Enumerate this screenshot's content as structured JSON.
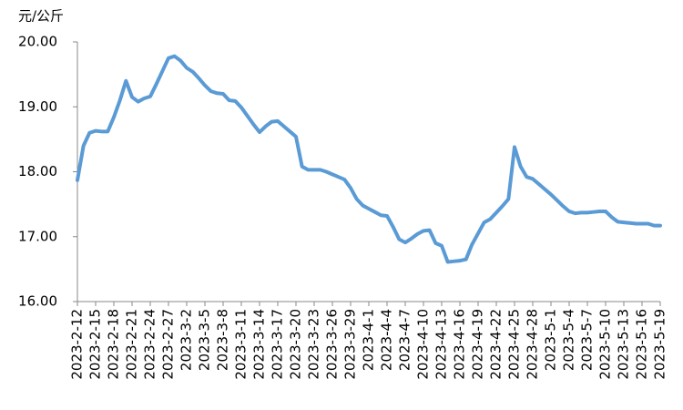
{
  "chart_data": {
    "type": "line",
    "y_label": "元/公斤",
    "categories": [
      "2023-2-12",
      null,
      null,
      "2023-2-15",
      null,
      null,
      "2023-2-18",
      null,
      null,
      "2023-2-21",
      null,
      null,
      "2023-2-24",
      null,
      null,
      "2023-2-27",
      null,
      null,
      "2023-3-2",
      null,
      null,
      "2023-3-5",
      null,
      null,
      "2023-3-8",
      null,
      null,
      "2023-3-11",
      null,
      null,
      "2023-3-14",
      null,
      null,
      "2023-3-17",
      null,
      null,
      "2023-3-20",
      null,
      null,
      "2023-3-23",
      null,
      null,
      "2023-3-26",
      null,
      null,
      "2023-3-29",
      null,
      null,
      "2023-4-1",
      null,
      null,
      "2023-4-4",
      null,
      null,
      "2023-4-7",
      null,
      null,
      "2023-4-10",
      null,
      null,
      "2023-4-13",
      null,
      null,
      "2023-4-16",
      null,
      null,
      "2023-4-19",
      null,
      null,
      "2023-4-22",
      null,
      null,
      "2023-4-25",
      null,
      null,
      "2023-4-28",
      null,
      null,
      "2023-5-1",
      null,
      null,
      "2023-5-4",
      null,
      null,
      "2023-5-7",
      null,
      null,
      "2023-5-10",
      null,
      null,
      "2023-5-13",
      null,
      null,
      "2023-5-16",
      null,
      null,
      "2023-5-19"
    ],
    "values": [
      17.87,
      18.4,
      18.6,
      18.63,
      18.62,
      18.62,
      18.84,
      19.1,
      19.4,
      19.15,
      19.08,
      19.13,
      19.16,
      19.35,
      19.55,
      19.75,
      19.78,
      19.71,
      19.6,
      19.54,
      19.44,
      19.33,
      19.24,
      19.21,
      19.2,
      19.1,
      19.09,
      18.99,
      18.86,
      18.73,
      18.61,
      18.7,
      18.77,
      18.78,
      18.7,
      18.62,
      18.54,
      18.08,
      18.03,
      18.03,
      18.03,
      18.0,
      17.96,
      17.92,
      17.88,
      17.75,
      17.58,
      17.48,
      17.43,
      17.38,
      17.33,
      17.32,
      17.15,
      16.96,
      16.91,
      16.97,
      17.04,
      17.09,
      17.1,
      16.9,
      16.86,
      16.61,
      16.62,
      16.63,
      16.65,
      16.88,
      17.05,
      17.22,
      17.27,
      17.37,
      17.47,
      17.58,
      18.38,
      18.08,
      17.92,
      17.89,
      17.81,
      17.73,
      17.65,
      17.56,
      17.47,
      17.39,
      17.36,
      17.37,
      17.37,
      17.38,
      17.39,
      17.39,
      17.3,
      17.23,
      17.22,
      17.21,
      17.2,
      17.2,
      17.2,
      17.17,
      17.17
    ],
    "color": "#5b9bd5",
    "ylim": [
      16,
      20
    ],
    "yticks": [
      {
        "value": 16,
        "label": "16.00"
      },
      {
        "value": 17,
        "label": "17.00"
      },
      {
        "value": 18,
        "label": "18.00"
      },
      {
        "value": 19,
        "label": "19.00"
      },
      {
        "value": 20,
        "label": "20.00"
      }
    ],
    "grid": false
  }
}
